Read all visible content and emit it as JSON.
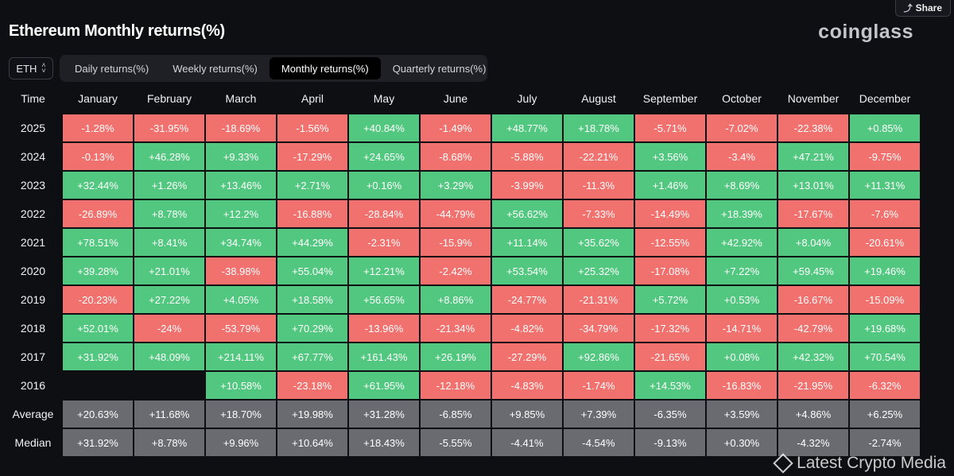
{
  "share_label": "Share",
  "title": "Ethereum Monthly returns(%)",
  "logo": "coinglass",
  "asset_select": {
    "value": "ETH"
  },
  "tabs": [
    {
      "label": "Daily returns(%)",
      "active": false
    },
    {
      "label": "Weekly returns(%)",
      "active": false
    },
    {
      "label": "Monthly returns(%)",
      "active": true
    },
    {
      "label": "Quarterly returns(%)",
      "active": false
    }
  ],
  "table": {
    "headers": [
      "Time",
      "January",
      "February",
      "March",
      "April",
      "May",
      "June",
      "July",
      "August",
      "September",
      "October",
      "November",
      "December"
    ],
    "rows": [
      {
        "year": "2025",
        "values": [
          "-1.28%",
          "-31.95%",
          "-18.69%",
          "-1.56%",
          "+40.84%",
          "-1.49%",
          "+48.77%",
          "+18.78%",
          "-5.71%",
          "-7.02%",
          "-22.38%",
          "+0.85%"
        ]
      },
      {
        "year": "2024",
        "values": [
          "-0.13%",
          "+46.28%",
          "+9.33%",
          "-17.29%",
          "+24.65%",
          "-8.68%",
          "-5.88%",
          "-22.21%",
          "+3.56%",
          "-3.4%",
          "+47.21%",
          "-9.75%"
        ]
      },
      {
        "year": "2023",
        "values": [
          "+32.44%",
          "+1.26%",
          "+13.46%",
          "+2.71%",
          "+0.16%",
          "+3.29%",
          "-3.99%",
          "-11.3%",
          "+1.46%",
          "+8.69%",
          "+13.01%",
          "+11.31%"
        ]
      },
      {
        "year": "2022",
        "values": [
          "-26.89%",
          "+8.78%",
          "+12.2%",
          "-16.88%",
          "-28.84%",
          "-44.79%",
          "+56.62%",
          "-7.33%",
          "-14.49%",
          "+18.39%",
          "-17.67%",
          "-7.6%"
        ]
      },
      {
        "year": "2021",
        "values": [
          "+78.51%",
          "+8.41%",
          "+34.74%",
          "+44.29%",
          "-2.31%",
          "-15.9%",
          "+11.14%",
          "+35.62%",
          "-12.55%",
          "+42.92%",
          "+8.04%",
          "-20.61%"
        ]
      },
      {
        "year": "2020",
        "values": [
          "+39.28%",
          "+21.01%",
          "-38.98%",
          "+55.04%",
          "+12.21%",
          "-2.42%",
          "+53.54%",
          "+25.32%",
          "-17.08%",
          "+7.22%",
          "+59.45%",
          "+19.46%"
        ]
      },
      {
        "year": "2019",
        "values": [
          "-20.23%",
          "+27.22%",
          "+4.05%",
          "+18.58%",
          "+56.65%",
          "+8.86%",
          "-24.77%",
          "-21.31%",
          "+5.72%",
          "+0.53%",
          "-16.67%",
          "-15.09%"
        ]
      },
      {
        "year": "2018",
        "values": [
          "+52.01%",
          "-24%",
          "-53.79%",
          "+70.29%",
          "-13.96%",
          "-21.34%",
          "-4.82%",
          "-34.79%",
          "-17.32%",
          "-14.71%",
          "-42.79%",
          "+19.68%"
        ]
      },
      {
        "year": "2017",
        "values": [
          "+31.92%",
          "+48.09%",
          "+214.11%",
          "+67.77%",
          "+161.43%",
          "+26.19%",
          "-27.29%",
          "+92.86%",
          "-21.65%",
          "+0.08%",
          "+42.32%",
          "+70.54%"
        ]
      },
      {
        "year": "2016",
        "values": [
          "",
          "",
          "+10.58%",
          "-23.18%",
          "+61.95%",
          "-12.18%",
          "-4.83%",
          "-1.74%",
          "+14.53%",
          "-16.83%",
          "-21.95%",
          "-6.32%"
        ]
      }
    ],
    "stats": [
      {
        "label": "Average",
        "values": [
          "+20.63%",
          "+11.68%",
          "+18.70%",
          "+19.98%",
          "+31.28%",
          "-6.85%",
          "+9.85%",
          "+7.39%",
          "-6.35%",
          "+3.59%",
          "+4.86%",
          "+6.25%"
        ]
      },
      {
        "label": "Median",
        "values": [
          "+31.92%",
          "+8.78%",
          "+9.96%",
          "+10.64%",
          "+18.43%",
          "-5.55%",
          "-4.41%",
          "-4.54%",
          "-9.13%",
          "+0.30%",
          "-4.32%",
          "-2.74%"
        ]
      }
    ]
  },
  "colors": {
    "positive": "#52c77f",
    "negative": "#f0716e",
    "stat": "#6a6b70",
    "background": "#0e0f13"
  },
  "watermark": {
    "text": "Latest Crypto Media",
    "icon": "binance-square-icon"
  }
}
